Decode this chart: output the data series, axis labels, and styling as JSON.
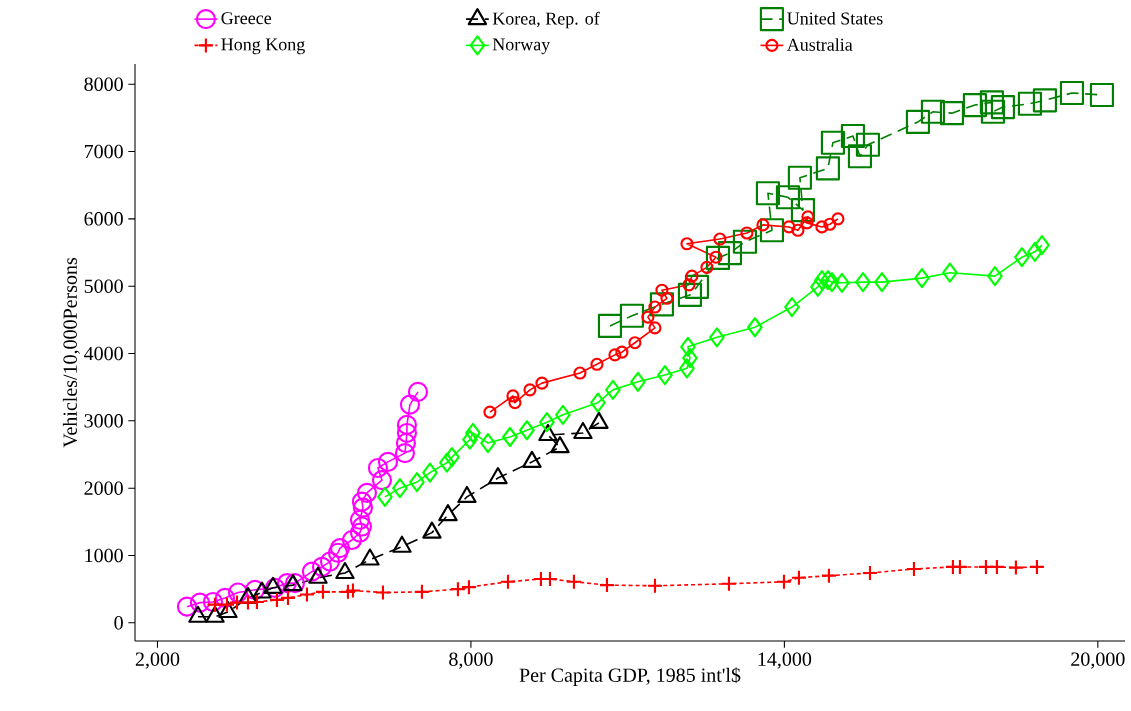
{
  "chart_data": {
    "type": "line",
    "xlabel": "Per Capita GDP, 1985 int'l$",
    "ylabel": "Vehicles/10,000Persons",
    "xlim": [
      1570,
      20520
    ],
    "ylim": [
      -270,
      8300
    ],
    "xticks": [
      {
        "value": 2000,
        "label": "2,000"
      },
      {
        "value": 8000,
        "label": "8,000"
      },
      {
        "value": 14000,
        "label": "14,000"
      },
      {
        "value": 20000,
        "label": "20,000"
      }
    ],
    "yticks": [
      0,
      1000,
      2000,
      3000,
      4000,
      5000,
      6000,
      7000,
      8000
    ],
    "grid": false,
    "legend": "top",
    "series": [
      {
        "name": "Greece",
        "color": "#ff00ff",
        "marker": "circle",
        "line_style": "solid",
        "x": [
          2565,
          2813,
          3062,
          3292,
          3541,
          3866,
          4249,
          4479,
          4632,
          4957,
          5149,
          5302,
          5455,
          5493,
          5723,
          5876,
          5914,
          5876,
          5933,
          5914,
          6010,
          6297,
          6220,
          6412,
          6737,
          6756,
          6775,
          6775,
          6833,
          6986
        ],
        "values": [
          240,
          300,
          310,
          370,
          450,
          490,
          520,
          590,
          590,
          760,
          830,
          910,
          1040,
          1110,
          1230,
          1340,
          1430,
          1530,
          1710,
          1800,
          1930,
          2120,
          2300,
          2390,
          2520,
          2670,
          2820,
          2940,
          3240,
          3430
        ]
      },
      {
        "name": "Korea, Rep. of",
        "color": "#000000",
        "marker": "triangle",
        "line_style": "dashed",
        "x": [
          2775,
          3101,
          3349,
          3732,
          4000,
          4211,
          4594,
          5072,
          5589,
          6067,
          6680,
          7254,
          7560,
          7924,
          8517,
          9168,
          9704,
          9474,
          10144,
          10450
        ],
        "values": [
          90,
          90,
          160,
          370,
          450,
          520,
          560,
          670,
          740,
          940,
          1130,
          1340,
          1600,
          1870,
          2150,
          2390,
          2610,
          2790,
          2820,
          2970
        ]
      },
      {
        "name": "United States",
        "color": "#008000",
        "marker": "square",
        "line_style": "dashed",
        "x": [
          10661,
          11082,
          11656,
          12192,
          12326,
          12728,
          12958,
          13245,
          13762,
          13685,
          14068,
          14355,
          14297,
          14833,
          14929,
          15312,
          15446,
          15599,
          16556,
          16843,
          17207,
          17647,
          17972,
          17992,
          18183,
          18700,
          18987,
          19504,
          20078
        ],
        "values": [
          4410,
          4560,
          4730,
          4870,
          4990,
          5420,
          5490,
          5660,
          5830,
          6380,
          6320,
          6130,
          6610,
          6750,
          7130,
          7230,
          6930,
          7100,
          7440,
          7590,
          7570,
          7690,
          7730,
          7590,
          7660,
          7710,
          7760,
          7870,
          7840
        ]
      },
      {
        "name": "Hong Kong",
        "color": "#ff0000",
        "marker": "cross",
        "line_style": "dotted",
        "x": [
          3101,
          3330,
          3522,
          3732,
          3904,
          4287,
          4498,
          4861,
          5167,
          5646,
          5742,
          6316,
          7062,
          7751,
          7962,
          8709,
          9340,
          9513,
          9972,
          10604,
          11523,
          12939,
          13992,
          14279,
          14853,
          15638,
          16480,
          17226,
          17360,
          17858,
          18068,
          18432,
          18834
        ],
        "values": [
          270,
          270,
          300,
          300,
          310,
          340,
          370,
          420,
          460,
          460,
          480,
          450,
          460,
          500,
          530,
          610,
          650,
          650,
          610,
          560,
          550,
          580,
          610,
          670,
          700,
          740,
          800,
          830,
          830,
          830,
          830,
          820,
          830
        ]
      },
      {
        "name": "Norway",
        "color": "#00ff00",
        "marker": "diamond",
        "line_style": "solid",
        "x": [
          6354,
          6641,
          6967,
          7216,
          7541,
          7637,
          7981,
          8039,
          8326,
          8747,
          9072,
          9455,
          9761,
          10431,
          10718,
          11197,
          11713,
          12135,
          12192,
          12154,
          12709,
          13436,
          14145,
          14642,
          14719,
          14834,
          14910,
          15102,
          15504,
          15867,
          16633,
          17169,
          18030,
          18547,
          18796,
          18930
        ],
        "values": [
          1870,
          2000,
          2090,
          2230,
          2380,
          2460,
          2720,
          2820,
          2670,
          2760,
          2860,
          2980,
          3090,
          3270,
          3460,
          3580,
          3680,
          3780,
          3930,
          4100,
          4240,
          4390,
          4690,
          4990,
          5090,
          5090,
          5060,
          5050,
          5060,
          5060,
          5120,
          5200,
          5150,
          5430,
          5510,
          5610
        ]
      },
      {
        "name": "Australia",
        "color": "#ff0000",
        "marker": "circle",
        "line_style": "solid",
        "x": [
          8364,
          8804,
          8843,
          9130,
          9359,
          10087,
          10412,
          10756,
          10890,
          11139,
          11522,
          11388,
          11522,
          11752,
          11656,
          12173,
          12230,
          12517,
          12690,
          12135,
          12766,
          13283,
          13589,
          14087,
          14259,
          14450,
          14431,
          14718,
          14871,
          15025
        ],
        "values": [
          3130,
          3370,
          3270,
          3460,
          3560,
          3710,
          3840,
          3980,
          4020,
          4160,
          4380,
          4540,
          4690,
          4820,
          4940,
          5020,
          5150,
          5280,
          5430,
          5630,
          5700,
          5790,
          5910,
          5880,
          5830,
          6030,
          5940,
          5880,
          5920,
          6000
        ]
      }
    ]
  }
}
